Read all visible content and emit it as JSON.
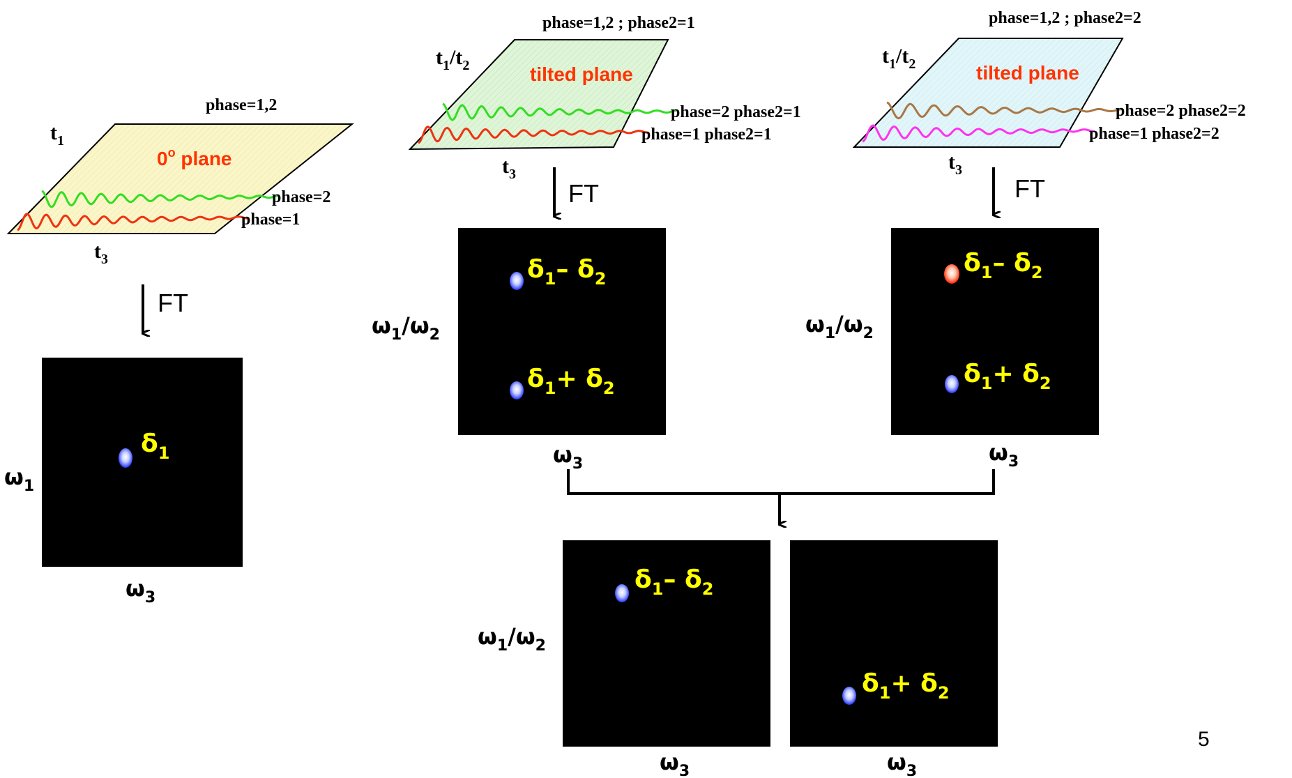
{
  "colors": {
    "plane_zero": "#fbf6c8",
    "plane_left": "#dff5d8",
    "plane_right": "#dff6fa",
    "title_red": "#ff3300",
    "wave_green": "#33dd22",
    "wave_red": "#ee3311",
    "wave_brown": "#aa7744",
    "wave_magenta": "#ff33ee",
    "peak_blue": "#3344ff",
    "peak_red": "#ff2200",
    "label_yellow": "#ffff00"
  },
  "panel_zero": {
    "header": "phase=1,2",
    "plane_title": "0",
    "plane_title_deg": "o",
    "plane_title_rest": " plane",
    "t_axis": "t",
    "t_axis_sub": "1",
    "bottom_axis": "t",
    "bottom_axis_sub": "3",
    "wave_labels": [
      "phase=2",
      "phase=1"
    ],
    "ft_label": "FT",
    "y_axis": "ω",
    "y_axis_sub": "1",
    "x_axis": "ω",
    "x_axis_sub": "3",
    "peak": {
      "sym": "δ",
      "sub": "1",
      "color": "blue"
    }
  },
  "panel_tilt1": {
    "header": "phase=1,2 ; phase2=1",
    "plane_title": "tilted plane",
    "t_axis": "t",
    "t_axis_sub1": "1",
    "t_axis_mid": "/t",
    "t_axis_sub2": "2",
    "bottom_axis": "t",
    "bottom_axis_sub": "3",
    "wave_labels": [
      "phase=2 phase2=1",
      "phase=1 phase2=1"
    ],
    "ft_label": "FT",
    "y_axis": "ω",
    "y_axis_sub1": "1",
    "y_axis_mid": "/ω",
    "y_axis_sub2": "2",
    "x_axis": "ω",
    "x_axis_sub": "3",
    "peaks": [
      {
        "sym": "δ",
        "sub1": "1",
        "op": "– ",
        "sym2": "δ",
        "sub2": "2",
        "color": "blue"
      },
      {
        "sym": "δ",
        "sub1": "1",
        "op": "+ ",
        "sym2": "δ",
        "sub2": "2",
        "color": "blue"
      }
    ]
  },
  "panel_tilt2": {
    "header": "phase=1,2 ; phase2=2",
    "plane_title": "tilted plane",
    "t_axis": "t",
    "t_axis_sub1": "1",
    "t_axis_mid": "/t",
    "t_axis_sub2": "2",
    "bottom_axis": "t",
    "bottom_axis_sub": "3",
    "wave_labels": [
      "phase=2 phase2=2",
      "phase=1 phase2=2"
    ],
    "ft_label": "FT",
    "y_axis": "ω",
    "y_axis_sub1": "1",
    "y_axis_mid": "/ω",
    "y_axis_sub2": "2",
    "x_axis": "ω",
    "x_axis_sub": "3",
    "peaks": [
      {
        "sym": "δ",
        "sub1": "1",
        "op": "– ",
        "sym2": "δ",
        "sub2": "2",
        "color": "red"
      },
      {
        "sym": "δ",
        "sub1": "1",
        "op": "+ ",
        "sym2": "δ",
        "sub2": "2",
        "color": "blue"
      }
    ]
  },
  "panel_combined": {
    "y_axis": "ω",
    "y_axis_sub1": "1",
    "y_axis_mid": "/ω",
    "y_axis_sub2": "2",
    "x_axis_left": "ω",
    "x_axis_left_sub": "3",
    "x_axis_right": "ω",
    "x_axis_right_sub": "3",
    "peak_left": {
      "sym": "δ",
      "sub1": "1",
      "op": "– ",
      "sym2": "δ",
      "sub2": "2",
      "color": "blue"
    },
    "peak_right": {
      "sym": "δ",
      "sub1": "1",
      "op": "+ ",
      "sym2": "δ",
      "sub2": "2",
      "color": "blue"
    }
  },
  "page_number": "5"
}
